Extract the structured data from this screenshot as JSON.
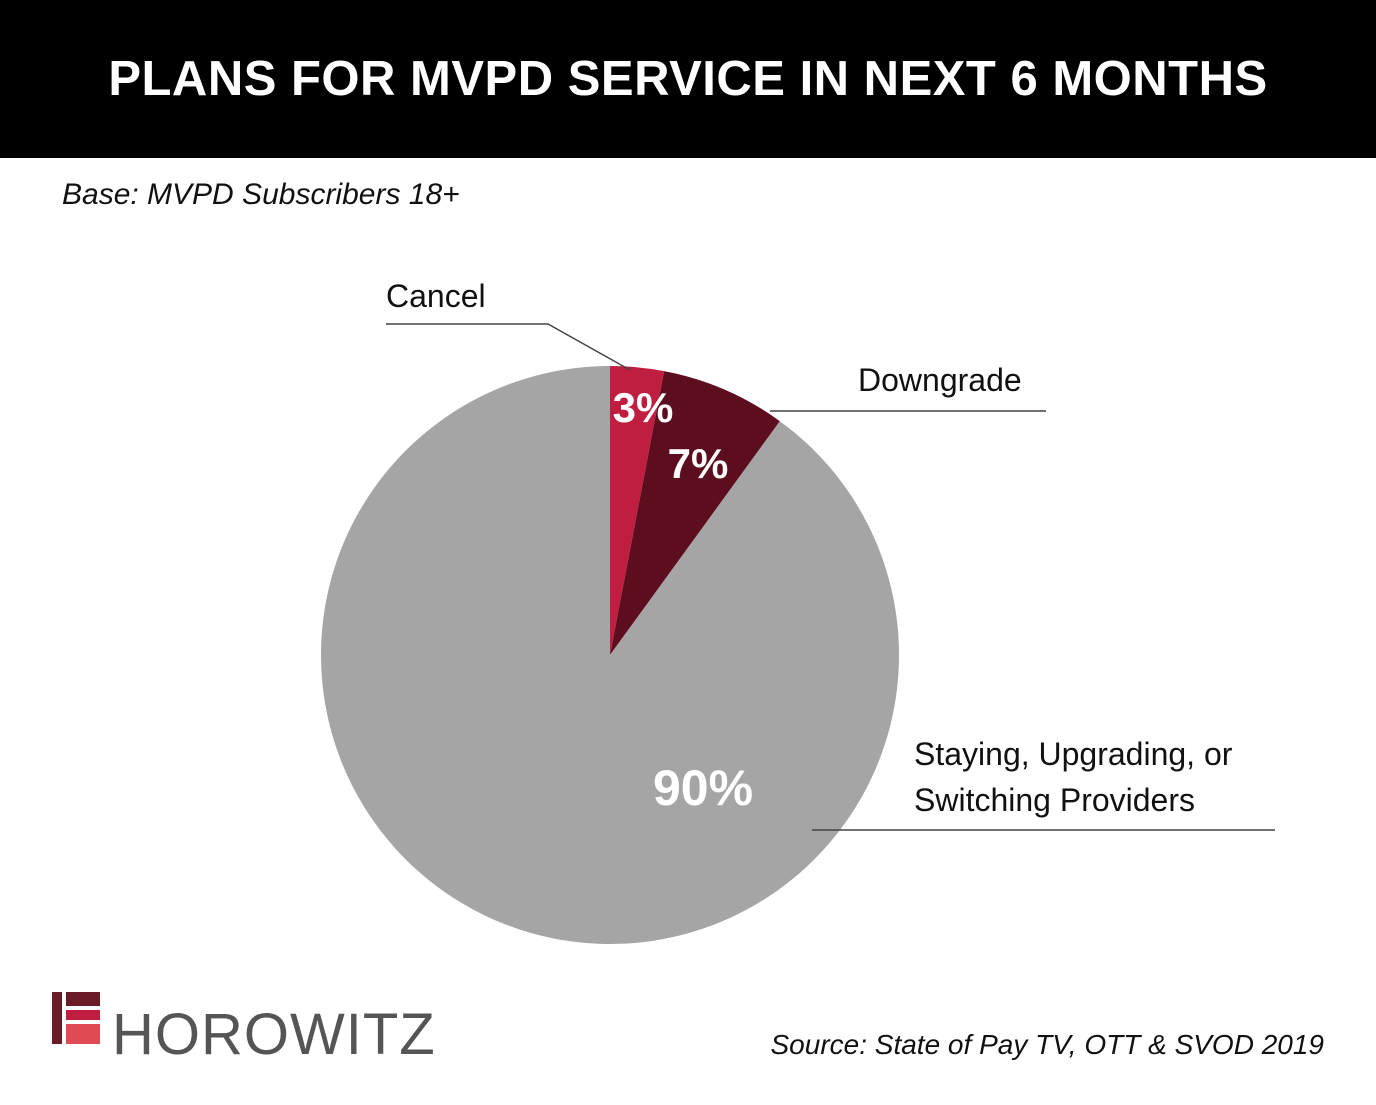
{
  "header": {
    "title": "PLANS FOR MVPD SERVICE IN NEXT 6 MONTHS",
    "base_note": "Base: MVPD Subscribers 18+"
  },
  "chart_data": {
    "type": "pie",
    "title": "PLANS FOR MVPD SERVICE IN NEXT 6 MONTHS",
    "subtitle": "Base: MVPD Subscribers 18+",
    "slices": [
      {
        "label": "Cancel",
        "label_lines": [
          "Cancel"
        ],
        "value": 3,
        "value_label": "3%",
        "color": "#c01e40"
      },
      {
        "label": "Downgrade",
        "label_lines": [
          "Downgrade"
        ],
        "value": 7,
        "value_label": "7%",
        "color": "#5c0e1f"
      },
      {
        "label": "Staying, Upgrading, or Switching Providers",
        "label_lines": [
          "Staying, Upgrading, or",
          "Switching Providers"
        ],
        "value": 90,
        "value_label": "90%",
        "color": "#a5a5a5"
      }
    ],
    "start_angle": "12 o'clock",
    "direction": "clockwise",
    "legend": "none (callout labels)"
  },
  "footer": {
    "source": "Source: State of Pay TV, OTT & SVOD 2019",
    "logo_text": "HOROWITZ",
    "logo_colors": [
      "#6b1b28",
      "#c01e40",
      "#e04a55"
    ]
  }
}
